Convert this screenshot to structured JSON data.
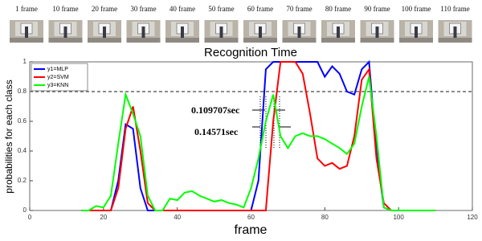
{
  "frames": [
    "1 frame",
    "10 frame",
    "20 frame",
    "30 frame",
    "40 frame",
    "50 frame",
    "60 frame",
    "70 frame",
    "80 frame",
    "90 frame",
    "100 frame",
    "110 frame"
  ],
  "chart_data": {
    "type": "line",
    "title": "Recognition Time",
    "x_label": "frame",
    "y_label": "probabilities for each class",
    "x": [
      14,
      16,
      18,
      20,
      22,
      24,
      26,
      28,
      30,
      32,
      34,
      36,
      38,
      40,
      42,
      44,
      46,
      48,
      50,
      52,
      54,
      56,
      58,
      60,
      62,
      64,
      66,
      68,
      70,
      72,
      74,
      76,
      78,
      80,
      82,
      84,
      86,
      88,
      90,
      92,
      94,
      96,
      98,
      100,
      102,
      104,
      106,
      108,
      110
    ],
    "series": [
      {
        "name": "y1=MLP",
        "color": "#0000ff",
        "values": [
          0,
          0,
          0,
          0,
          0,
          0.2,
          0.58,
          0.55,
          0.15,
          0,
          0,
          0,
          0,
          0,
          0,
          0,
          0,
          0,
          0,
          0,
          0,
          0,
          0,
          0,
          0.2,
          0.95,
          1,
          1,
          1,
          1,
          1,
          1,
          1,
          0.9,
          0.97,
          0.92,
          0.8,
          0.78,
          0.95,
          1,
          0.4,
          0.02,
          0,
          0,
          0,
          0,
          0,
          0,
          0
        ]
      },
      {
        "name": "y2=SVM",
        "color": "#ff0000",
        "values": [
          0,
          0,
          0,
          0,
          0,
          0.15,
          0.55,
          0.7,
          0.4,
          0.05,
          0,
          0,
          0,
          0,
          0,
          0,
          0,
          0,
          0,
          0,
          0,
          0,
          0,
          0,
          0,
          0,
          0.6,
          1,
          1,
          1,
          0.92,
          0.65,
          0.35,
          0.3,
          0.32,
          0.28,
          0.3,
          0.5,
          0.88,
          0.95,
          0.35,
          0.05,
          0,
          0,
          0,
          0,
          0,
          0,
          0
        ]
      },
      {
        "name": "y3=KNN",
        "color": "#00ff00",
        "values": [
          0,
          0,
          0.03,
          0.02,
          0.1,
          0.45,
          0.78,
          0.65,
          0.5,
          0.1,
          0,
          0,
          0.08,
          0.07,
          0.12,
          0.13,
          0.1,
          0.08,
          0.06,
          0.07,
          0.05,
          0.04,
          0.02,
          0.15,
          0.35,
          0.6,
          0.78,
          0.5,
          0.42,
          0.5,
          0.52,
          0.5,
          0.5,
          0.48,
          0.45,
          0.42,
          0.38,
          0.45,
          0.7,
          0.9,
          0.5,
          0.02,
          0,
          0,
          0,
          0,
          0,
          0,
          0
        ]
      }
    ],
    "xlim": [
      0,
      120
    ],
    "xticks": [
      0,
      20,
      40,
      60,
      80,
      100,
      120
    ],
    "ylim": [
      0,
      1
    ],
    "yticks": [
      0,
      0.2,
      0.4,
      0.6,
      0.8,
      1
    ],
    "hline": 0.8,
    "legend": "upper left",
    "grid": false,
    "annotations": [
      "0.109707sec",
      "0.14571sec"
    ]
  }
}
